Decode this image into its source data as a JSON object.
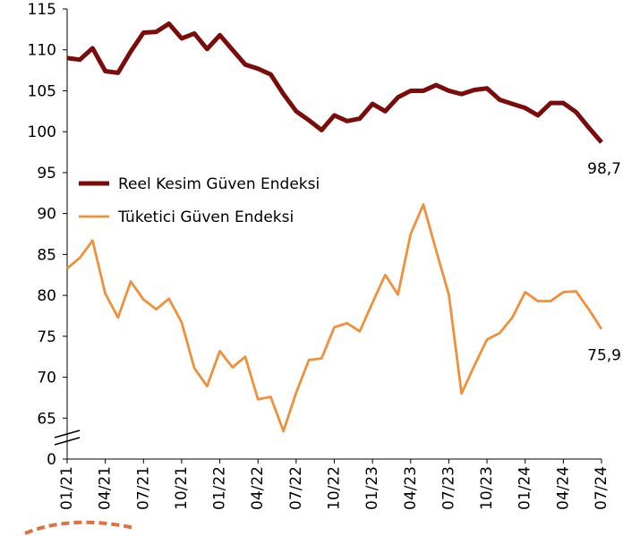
{
  "chart_data": {
    "type": "line",
    "categories": [
      "01/21",
      null,
      null,
      "04/21",
      null,
      null,
      "07/21",
      null,
      null,
      "10/21",
      null,
      null,
      "01/22",
      null,
      null,
      "04/22",
      null,
      null,
      "07/22",
      null,
      null,
      "10/22",
      null,
      null,
      "01/23",
      null,
      null,
      "04/23",
      null,
      null,
      "07/23",
      null,
      null,
      "10/23",
      null,
      null,
      "01/24",
      null,
      null,
      "04/24",
      null,
      null,
      "07/24"
    ],
    "series": [
      {
        "name": "Reel Kesim Güven Endeksi",
        "color": "#7a0c0c",
        "values": [
          109,
          108.8,
          110.2,
          107.4,
          107.2,
          109.8,
          112.1,
          112.2,
          113.2,
          111.4,
          112.0,
          110.1,
          111.8,
          110.0,
          108.2,
          107.7,
          107.0,
          104.6,
          102.5,
          101.4,
          100.2,
          102.0,
          101.3,
          101.6,
          103.4,
          102.5,
          104.2,
          105.0,
          105.0,
          105.7,
          105.0,
          104.6,
          105.1,
          105.3,
          103.9,
          103.4,
          102.9,
          102.0,
          103.5,
          103.5,
          102.4,
          100.5,
          98.7
        ],
        "value_labels": [
          null,
          null,
          null,
          null,
          null,
          null,
          null,
          null,
          null,
          null,
          null,
          null,
          null,
          null,
          null,
          null,
          null,
          null,
          null,
          null,
          null,
          null,
          null,
          null,
          null,
          null,
          null,
          null,
          null,
          null,
          null,
          null,
          null,
          null,
          null,
          null,
          null,
          null,
          null,
          null,
          null,
          null,
          "98,7"
        ]
      },
      {
        "name": "Tüketici Güven Endeksi",
        "color": "#f0903a",
        "values": [
          83.3,
          84.6,
          86.7,
          80.2,
          77.3,
          81.7,
          79.5,
          78.3,
          79.6,
          76.7,
          71.1,
          68.9,
          73.2,
          71.2,
          72.5,
          67.3,
          67.6,
          63.4,
          68.1,
          72.1,
          72.3,
          76.1,
          76.6,
          75.6,
          79.1,
          82.5,
          80.1,
          87.5,
          91.1,
          85.5,
          80.1,
          68.0,
          71.4,
          74.6,
          75.4,
          77.3,
          80.4,
          79.3,
          79.3,
          80.4,
          80.5,
          78.3,
          75.9
        ],
        "value_labels": [
          null,
          null,
          null,
          null,
          null,
          null,
          null,
          null,
          null,
          null,
          null,
          null,
          null,
          null,
          null,
          null,
          null,
          null,
          null,
          null,
          null,
          null,
          null,
          null,
          null,
          null,
          null,
          null,
          null,
          null,
          null,
          null,
          null,
          null,
          null,
          null,
          null,
          null,
          null,
          null,
          null,
          null,
          "75,9"
        ]
      }
    ],
    "ylim": [
      0,
      115
    ],
    "axis_break": [
      0,
      60
    ],
    "yticks": [
      0,
      65,
      70,
      75,
      80,
      85,
      90,
      95,
      100,
      105,
      110,
      115
    ],
    "grid": false,
    "legend": "center left"
  }
}
